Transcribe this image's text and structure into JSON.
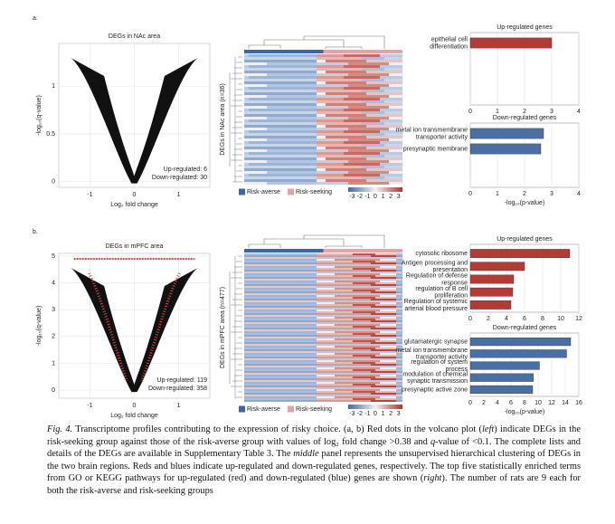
{
  "panels": [
    {
      "label": "a.",
      "volcano": {
        "type": "scatter",
        "title": "DEGs in NAc area",
        "xlabel": "Log₂ fold change",
        "ylabel": "-log₁₀(q-value)",
        "xlim": [
          -1.7,
          1.7
        ],
        "ylim": [
          -0.06,
          1.45
        ],
        "xticks": [
          -1,
          0,
          1
        ],
        "yticks": [
          0,
          0.5,
          1
        ],
        "annotations": [
          "Up-regulated: 6",
          "Down-regulated: 30"
        ]
      },
      "heatmap": {
        "type": "heatmap",
        "ylabel": "DEGs in NAc area (n=36)",
        "legend": [
          "Risk-averse",
          "Risk-seeking"
        ],
        "colorbar_ticks": [
          -3,
          -2,
          -1,
          0,
          1,
          2,
          3
        ]
      },
      "up": {
        "type": "bar",
        "title": "Up-regulated genes",
        "categories": [
          "epithelial cell differentiation"
        ],
        "values": [
          3.0
        ],
        "color": "#b23b36",
        "xlim": [
          0,
          4
        ],
        "xticks": [
          0,
          1,
          2,
          3,
          4
        ],
        "grid": true
      },
      "down": {
        "type": "bar",
        "title": "Down-regulated genes",
        "categories": [
          "metal ion transmembrane transporter activity",
          "presynaptic membrane"
        ],
        "values": [
          2.7,
          2.6
        ],
        "color": "#4a6fa5",
        "xlim": [
          0,
          4
        ],
        "xticks": [
          0,
          1,
          2,
          3,
          4
        ],
        "grid": true,
        "xlabel": "-log₁₀(p-value)"
      }
    },
    {
      "label": "b.",
      "volcano": {
        "type": "scatter",
        "title": "DEGs in mPFC area",
        "xlabel": "Log₂ fold change",
        "ylabel": "-log₁₀(q-value)",
        "xlim": [
          -1.7,
          1.7
        ],
        "ylim": [
          -0.3,
          5.1
        ],
        "xticks": [
          -1,
          0,
          1
        ],
        "yticks": [
          0,
          1,
          2,
          3,
          4,
          5
        ],
        "annotations": [
          "Up-regulated: 119",
          "Down-regulated: 358"
        ]
      },
      "heatmap": {
        "type": "heatmap",
        "ylabel": "DEGs in mPFC area (n=477)",
        "legend": [
          "Risk-averse",
          "Risk-seeking"
        ],
        "colorbar_ticks": [
          -3,
          -2,
          -1,
          0,
          1,
          2,
          3
        ]
      },
      "up": {
        "type": "bar",
        "title": "Up-regulated genes",
        "categories": [
          "cytosolic ribosome",
          "Antigen processing and presentation",
          "Regulation of defense response",
          "regulation of B cell proliferation",
          "Regulation of systemic arterial blood pressure"
        ],
        "values": [
          11,
          6,
          4.8,
          4.7,
          4.5
        ],
        "color": "#b23b36",
        "xlim": [
          0,
          12
        ],
        "xticks": [
          0,
          2,
          4,
          6,
          8,
          10,
          12
        ],
        "grid": true
      },
      "down": {
        "type": "bar",
        "title": "Down-regulated genes",
        "categories": [
          "glutamatergic synapse",
          "metal ion transmembrane transporter activity",
          "regulation of system process",
          "modulation of chemical synaptic transmission",
          "presynaptic active zone"
        ],
        "values": [
          14.8,
          14.2,
          10.2,
          9.3,
          9.2
        ],
        "color": "#4a6fa5",
        "xlim": [
          0,
          16
        ],
        "xticks": [
          0,
          2,
          4,
          6,
          8,
          10,
          12,
          14,
          16
        ],
        "grid": true,
        "xlabel": "-log₁₀(p-value)"
      }
    }
  ],
  "caption": [
    "Fig. 4.",
    " Transcriptome profiles contributing to the expression of risky choice. (a, b) Red dots in the volcano plot (",
    "left",
    ") indicate DEGs in the risk-seeking group against those of the risk-averse group with values of log₂ fold change >0.38 and ",
    "q",
    "-value of <0.1. The complete lists and details of the DEGs are available in Supplementary Table 3. The ",
    "middle",
    " panel represents the unsupervised hierarchical clustering of DEGs in the two brain regions. Reds and blues indicate up-regulated and down-regulated genes, respectively. The top five statistically enriched terms from GO or KEGG pathways for up-regulated (red) and down-regulated (blue) genes are shown (",
    "right",
    "). The number of rats are 9 each for both the risk-averse and risk-seeking groups"
  ]
}
